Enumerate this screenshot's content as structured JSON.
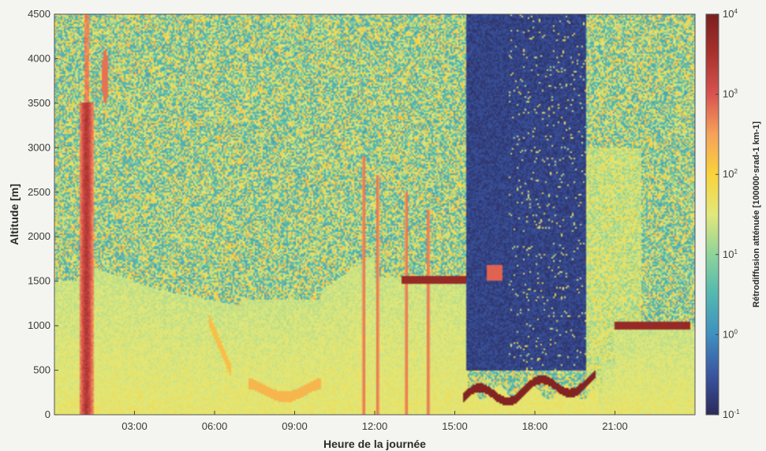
{
  "chart_data": {
    "type": "heatmap",
    "title": "",
    "xlabel": "Heure de la journée",
    "ylabel": "Altitude [m]",
    "xlim": [
      0,
      24
    ],
    "ylim": [
      0,
      4500
    ],
    "x_ticks": [
      {
        "value": 3,
        "label": "03:00"
      },
      {
        "value": 6,
        "label": "06:00"
      },
      {
        "value": 9,
        "label": "09:00"
      },
      {
        "value": 12,
        "label": "12:00"
      },
      {
        "value": 15,
        "label": "15:00"
      },
      {
        "value": 18,
        "label": "18:00"
      },
      {
        "value": 21,
        "label": "21:00"
      }
    ],
    "y_ticks": [
      0,
      500,
      1000,
      1500,
      2000,
      2500,
      3000,
      3500,
      4000,
      4500
    ],
    "colorbar": {
      "label": "Rétrodiffusion atténuée [100000·srad-1 km-1]",
      "scale": "log",
      "range": [
        0.1,
        10000
      ],
      "ticks": [
        {
          "value": 0.1,
          "base": "10",
          "exp": "-1"
        },
        {
          "value": 1,
          "base": "10",
          "exp": "0"
        },
        {
          "value": 10,
          "base": "10",
          "exp": "1"
        },
        {
          "value": 100,
          "base": "10",
          "exp": "2"
        },
        {
          "value": 1000,
          "base": "10",
          "exp": "3"
        },
        {
          "value": 10000,
          "base": "10",
          "exp": "4"
        }
      ],
      "colormap": [
        "#2b2a5c",
        "#3a55a0",
        "#3f8fc0",
        "#52b8b0",
        "#8fd39a",
        "#e2e87a",
        "#f9d33a",
        "#f6a25a",
        "#d9534f",
        "#a8322d",
        "#7a1f1f"
      ]
    },
    "features": [
      {
        "name": "boundary layer aerosol",
        "x_start": 0,
        "x_end": 15.5,
        "top_altitude": 1600,
        "log_backscatter": 1.6
      },
      {
        "name": "thin cloud layer",
        "x_start": 13,
        "x_end": 15.4,
        "altitude": 1520,
        "log_backscatter": 3.6
      },
      {
        "name": "low cloud base",
        "x_start": 15.3,
        "x_end": 20.3,
        "altitude": 250,
        "log_backscatter": 3.9
      },
      {
        "name": "evening cloud layer",
        "x_start": 21,
        "x_end": 23.8,
        "altitude": 1000,
        "log_backscatter": 3.6
      },
      {
        "name": "attenuated region above cloud",
        "x_start": 15.4,
        "x_end": 19.8,
        "log_backscatter": -0.8
      }
    ]
  }
}
